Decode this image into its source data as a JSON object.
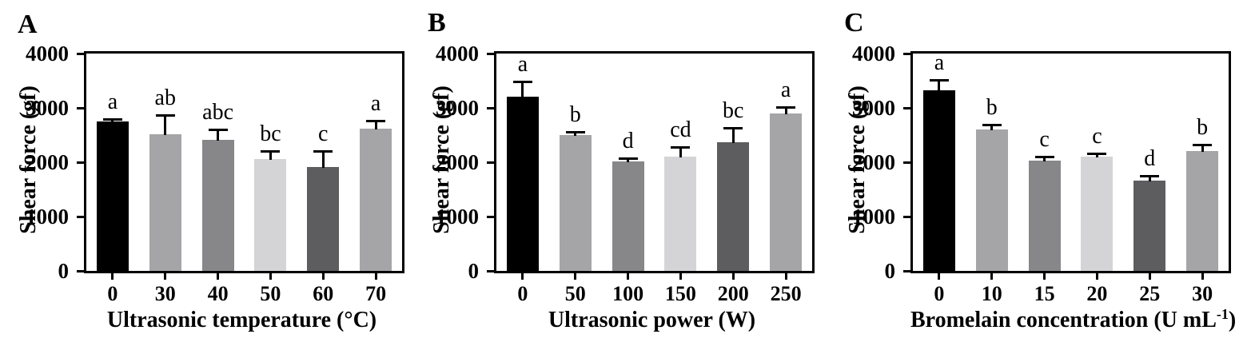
{
  "chart_data": [
    {
      "type": "bar",
      "panel": "A",
      "title": "",
      "xlabel": "Ultrasonic temperature (°C)",
      "xlabel_parts": [
        {
          "text": "Ultrasonic temperature (°C)",
          "sup": false
        }
      ],
      "ylabel": "Shear force (gf)",
      "categories": [
        "0",
        "30",
        "40",
        "50",
        "60",
        "70"
      ],
      "values": [
        2750,
        2520,
        2410,
        2060,
        1910,
        2620
      ],
      "errors": [
        40,
        350,
        200,
        150,
        300,
        150
      ],
      "sig_letters": [
        "a",
        "ab",
        "abc",
        "bc",
        "c",
        "a"
      ],
      "ylim": [
        0,
        4000
      ],
      "yticks": [
        0,
        1000,
        2000,
        3000,
        4000
      ],
      "bar_colors": [
        "#000000",
        "#a5a5a7",
        "#87878a",
        "#d4d4d6",
        "#5d5d5f",
        "#a5a5a7"
      ],
      "grid": false,
      "legend": null,
      "frame": true
    },
    {
      "type": "bar",
      "panel": "B",
      "title": "",
      "xlabel": "Ultrasonic power (W)",
      "xlabel_parts": [
        {
          "text": "Ultrasonic power (W)",
          "sup": false
        }
      ],
      "ylabel": "Shear force (gf)",
      "categories": [
        "0",
        "50",
        "100",
        "150",
        "200",
        "250"
      ],
      "values": [
        3210,
        2500,
        2010,
        2110,
        2370,
        2890
      ],
      "errors": [
        280,
        60,
        70,
        170,
        260,
        130
      ],
      "sig_letters": [
        "a",
        "b",
        "d",
        "cd",
        "bc",
        "a"
      ],
      "ylim": [
        0,
        4000
      ],
      "yticks": [
        0,
        1000,
        2000,
        3000,
        4000
      ],
      "bar_colors": [
        "#000000",
        "#a5a5a7",
        "#87878a",
        "#d4d4d6",
        "#5d5d5f",
        "#a5a5a7"
      ],
      "grid": false,
      "legend": null,
      "frame": true
    },
    {
      "type": "bar",
      "panel": "C",
      "title": "",
      "xlabel": "Bromelain concentration (U mL⁻¹)",
      "xlabel_parts": [
        {
          "text": "Bromelain concentration (U mL",
          "sup": false
        },
        {
          "text": "-1",
          "sup": true
        },
        {
          "text": ")",
          "sup": false
        }
      ],
      "ylabel": "Shear force (gf)",
      "categories": [
        "0",
        "10",
        "15",
        "20",
        "25",
        "30"
      ],
      "values": [
        3330,
        2610,
        2030,
        2110,
        1660,
        2200
      ],
      "errors": [
        180,
        80,
        80,
        50,
        90,
        130
      ],
      "sig_letters": [
        "a",
        "b",
        "c",
        "c",
        "d",
        "b"
      ],
      "ylim": [
        0,
        4000
      ],
      "yticks": [
        0,
        1000,
        2000,
        3000,
        4000
      ],
      "bar_colors": [
        "#000000",
        "#a5a5a7",
        "#87878a",
        "#d4d4d6",
        "#5d5d5f",
        "#a5a5a7"
      ],
      "grid": false,
      "legend": null,
      "frame": true
    }
  ]
}
